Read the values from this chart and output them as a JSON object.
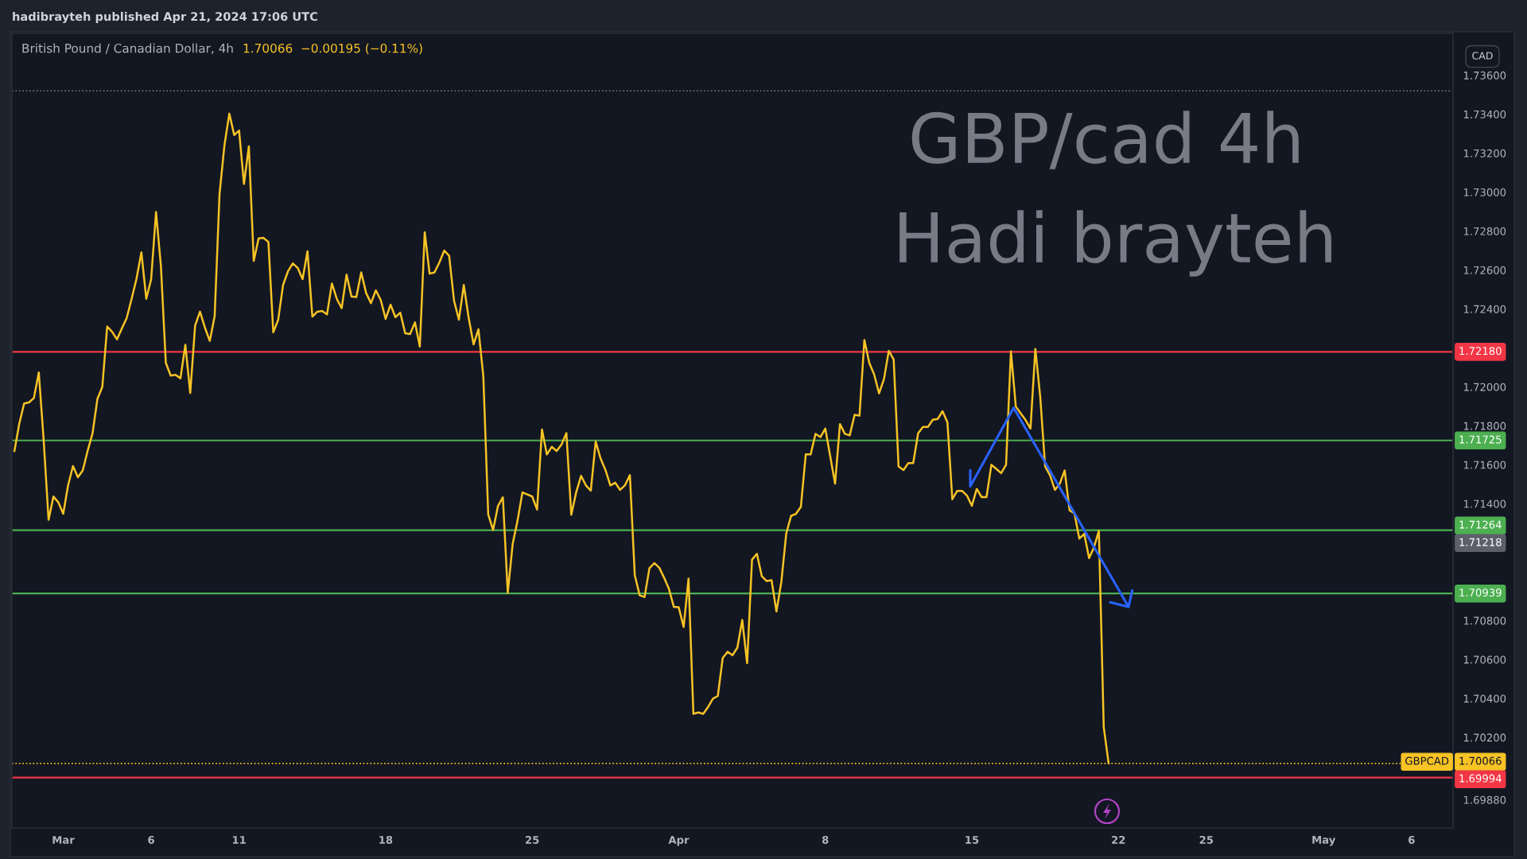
{
  "chart_data": {
    "type": "line",
    "title": "British Pound / Canadian Dollar, 4h",
    "subtitle": "1.70066  −0.00195 (−0.11%)",
    "ylabel": "CAD",
    "annotations": [
      "hadibrayteh published Apr 21, 2024 17:06 UTC",
      "GBP/cad 4h",
      "Hadi brayteh",
      "GBPCAD",
      "1.71218"
    ],
    "categories": [
      null,
      null,
      null,
      null,
      null,
      null,
      null,
      null,
      null,
      null,
      "Mar",
      null,
      null,
      null,
      null,
      null,
      null,
      null,
      null,
      null,
      null,
      null,
      null,
      null,
      null,
      null,
      null,
      null,
      "6",
      null,
      null,
      null,
      null,
      null,
      null,
      null,
      null,
      null,
      null,
      null,
      null,
      null,
      null,
      null,
      null,
      null,
      "11",
      null,
      null,
      null,
      null,
      null,
      null,
      null,
      null,
      null,
      null,
      null,
      null,
      null,
      null,
      null,
      null,
      null,
      null,
      null,
      null,
      null,
      null,
      null,
      null,
      null,
      null,
      null,
      null,
      null,
      "18",
      null,
      null,
      null,
      null,
      null,
      null,
      null,
      null,
      null,
      null,
      null,
      null,
      null,
      null,
      null,
      null,
      null,
      null,
      null,
      null,
      null,
      null,
      null,
      null,
      null,
      null,
      null,
      null,
      null,
      "25",
      null,
      null,
      null,
      null,
      null,
      null,
      null,
      null,
      null,
      null,
      null,
      null,
      null,
      null,
      null,
      null,
      null,
      null,
      null,
      null,
      null,
      null,
      null,
      null,
      null,
      null,
      null,
      null,
      null,
      "Apr",
      null,
      null,
      null,
      null,
      null,
      null,
      null,
      null,
      null,
      null,
      null,
      null,
      null,
      null,
      null,
      null,
      null,
      null,
      null,
      null,
      null,
      null,
      null,
      null,
      null,
      null,
      null,
      null,
      null,
      "8",
      null,
      null,
      null,
      null,
      null,
      null,
      null,
      null,
      null,
      null,
      null,
      null,
      null,
      null,
      null,
      null,
      null,
      null,
      null,
      null,
      null,
      null,
      null,
      null,
      null,
      null,
      null,
      null,
      null,
      "15",
      null,
      null,
      null,
      null,
      null,
      null,
      null,
      null,
      null,
      null,
      null,
      null,
      null,
      null,
      null,
      null,
      null,
      null,
      null,
      null,
      null,
      null,
      null,
      null,
      null,
      null,
      null,
      null,
      null,
      "22",
      null,
      null,
      null,
      null,
      null,
      null,
      null,
      null,
      null,
      null,
      null,
      null,
      null,
      null,
      null,
      null,
      null,
      "25",
      null,
      null,
      null,
      null,
      null,
      null,
      null,
      null,
      null,
      null,
      null,
      null,
      null,
      null,
      null,
      null,
      null,
      null,
      null,
      null,
      null,
      null,
      null,
      "May",
      null,
      null,
      null,
      null,
      null,
      null,
      null,
      null,
      null,
      null,
      null,
      null,
      null,
      null,
      null,
      null,
      null,
      "6",
      null,
      null,
      null,
      null,
      null,
      null,
      null,
      null
    ],
    "series": [
      {
        "color": "#f7c325",
        "values": [
          1.7167,
          1.71811,
          1.71915,
          1.7192,
          1.71943,
          1.72074,
          1.71725,
          1.71318,
          1.71437,
          1.71407,
          1.71348,
          1.71495,
          1.71593,
          1.71536,
          1.71571,
          1.71672,
          1.71761,
          1.71938,
          1.72,
          1.7231,
          1.72283,
          1.72244,
          1.723,
          1.72354,
          1.72452,
          1.72555,
          1.72691,
          1.72452,
          1.72553,
          1.72898,
          1.7262,
          1.72124,
          1.72058,
          1.72062,
          1.72044,
          1.72216,
          1.71968,
          1.72315,
          1.72386,
          1.72305,
          1.72236,
          1.72363,
          1.72992,
          1.7324,
          1.73403,
          1.73293,
          1.73316,
          1.73042,
          1.73235,
          1.72647,
          1.72762,
          1.72765,
          1.72744,
          1.7228,
          1.72344,
          1.72523,
          1.72593,
          1.72634,
          1.72611,
          1.72553,
          1.72696,
          1.72361,
          1.72386,
          1.7239,
          1.72372,
          1.72531,
          1.72452,
          1.72404,
          1.72576,
          1.72464,
          1.72461,
          1.72588,
          1.72482,
          1.7243,
          1.72496,
          1.72446,
          1.72349,
          1.72422,
          1.72358,
          1.72381,
          1.72275,
          1.72271,
          1.72331,
          1.72207,
          1.72794,
          1.72581,
          1.72588,
          1.72639,
          1.727,
          1.72673,
          1.72443,
          1.72345,
          1.72523,
          1.72354,
          1.72218,
          1.72296,
          1.72053,
          1.71345,
          1.71265,
          1.71389,
          1.71433,
          1.70942,
          1.71193,
          1.71313,
          1.71458,
          1.71448,
          1.71437,
          1.7137,
          1.71781,
          1.71653,
          1.71692,
          1.71671,
          1.71704,
          1.71763,
          1.71343,
          1.71458,
          1.71543,
          1.71494,
          1.71467,
          1.71719,
          1.71632,
          1.71573,
          1.71494,
          1.71508,
          1.71471,
          1.71495,
          1.71547,
          1.71033,
          1.7093,
          1.70921,
          1.71069,
          1.71095,
          1.71072,
          1.7102,
          1.70962,
          1.7087,
          1.70868,
          1.70767,
          1.71015,
          1.70321,
          1.70328,
          1.70321,
          1.70356,
          1.70399,
          1.70413,
          1.70608,
          1.7064,
          1.70622,
          1.70661,
          1.70803,
          1.70581,
          1.71113,
          1.71143,
          1.71028,
          1.71003,
          1.71007,
          1.70847,
          1.70998,
          1.71246,
          1.71338,
          1.71348,
          1.71384,
          1.71653,
          1.71653,
          1.71759,
          1.71742,
          1.71786,
          1.71644,
          1.71503,
          1.71809,
          1.71759,
          1.71751,
          1.71857,
          1.71852,
          1.72241,
          1.72123,
          1.72064,
          1.71967,
          1.72039,
          1.72185,
          1.7214,
          1.71591,
          1.71573,
          1.71609,
          1.71609,
          1.71762,
          1.71794,
          1.71794,
          1.71831,
          1.71835,
          1.71875,
          1.71818,
          1.71423,
          1.71466,
          1.71466,
          1.71442,
          1.71389,
          1.71476,
          1.71434,
          1.71434,
          1.716,
          1.71579,
          1.71557,
          1.716,
          1.72182,
          1.71899,
          1.71864,
          1.7183,
          1.71786,
          1.72195,
          1.71948,
          1.71592,
          1.71546,
          1.71471,
          1.71503,
          1.71571,
          1.71366,
          1.7135,
          1.71221,
          1.71245,
          1.71121,
          1.71176,
          1.71261,
          1.70252,
          1.70066,
          null,
          null,
          null,
          null,
          null,
          null,
          null,
          null,
          null,
          null,
          null,
          null,
          null,
          null,
          null,
          null,
          null,
          null,
          null,
          null,
          null,
          null,
          null,
          null,
          null,
          null,
          null,
          null,
          null,
          null,
          null,
          null,
          null,
          null,
          null,
          null,
          null,
          null,
          null,
          null,
          null,
          null,
          null,
          null,
          null,
          null,
          null,
          null,
          null,
          null,
          null,
          null,
          null,
          null,
          null,
          null,
          null,
          null,
          null,
          null,
          null,
          null,
          null,
          null,
          null,
          null,
          null,
          null,
          null,
          null
        ]
      }
    ],
    "ylim": [
      1.69735,
      1.73815
    ],
    "yticks": [
      {
        "value": 1.6988,
        "label": "1.69880"
      },
      {
        "value": 1.702,
        "label": "1.70200"
      },
      {
        "value": 1.704,
        "label": "1.70400"
      },
      {
        "value": 1.706,
        "label": "1.70600"
      },
      {
        "value": 1.708,
        "label": "1.70800"
      },
      {
        "value": 1.714,
        "label": "1.71400"
      },
      {
        "value": 1.716,
        "label": "1.71600"
      },
      {
        "value": 1.718,
        "label": "1.71800"
      },
      {
        "value": 1.72,
        "label": "1.72000"
      },
      {
        "value": 1.724,
        "label": "1.72400"
      },
      {
        "value": 1.726,
        "label": "1.72600"
      },
      {
        "value": 1.728,
        "label": "1.72800"
      },
      {
        "value": 1.73,
        "label": "1.73000"
      },
      {
        "value": 1.732,
        "label": "1.73200"
      },
      {
        "value": 1.734,
        "label": "1.73400"
      },
      {
        "value": 1.736,
        "label": "1.73600"
      }
    ],
    "ref_lines": [
      {
        "axis": "y",
        "value": 1.7352,
        "color": "#787b86",
        "line_style": "dotted"
      },
      {
        "axis": "y",
        "value": 1.7218,
        "label": "1.72180",
        "color": "#f23645",
        "line_style": "solid"
      },
      {
        "axis": "y",
        "value": 1.71725,
        "label": "1.71725",
        "color": "#4caf50",
        "line_style": "solid"
      },
      {
        "axis": "y",
        "value": 1.71264,
        "label": "1.71264",
        "color": "#4caf50",
        "line_style": "solid"
      },
      {
        "axis": "y",
        "value": 1.70939,
        "label": "1.70939",
        "color": "#4caf50",
        "line_style": "solid"
      },
      {
        "axis": "y",
        "value": 1.70066,
        "label": "1.70066",
        "color": "#f7c325",
        "line_style": "dotted"
      },
      {
        "axis": "y",
        "value": 1.69994,
        "label": "1.69994",
        "color": "#f23645",
        "line_style": "solid"
      }
    ],
    "grid": false,
    "marker": "none",
    "line_style": "solid"
  }
}
